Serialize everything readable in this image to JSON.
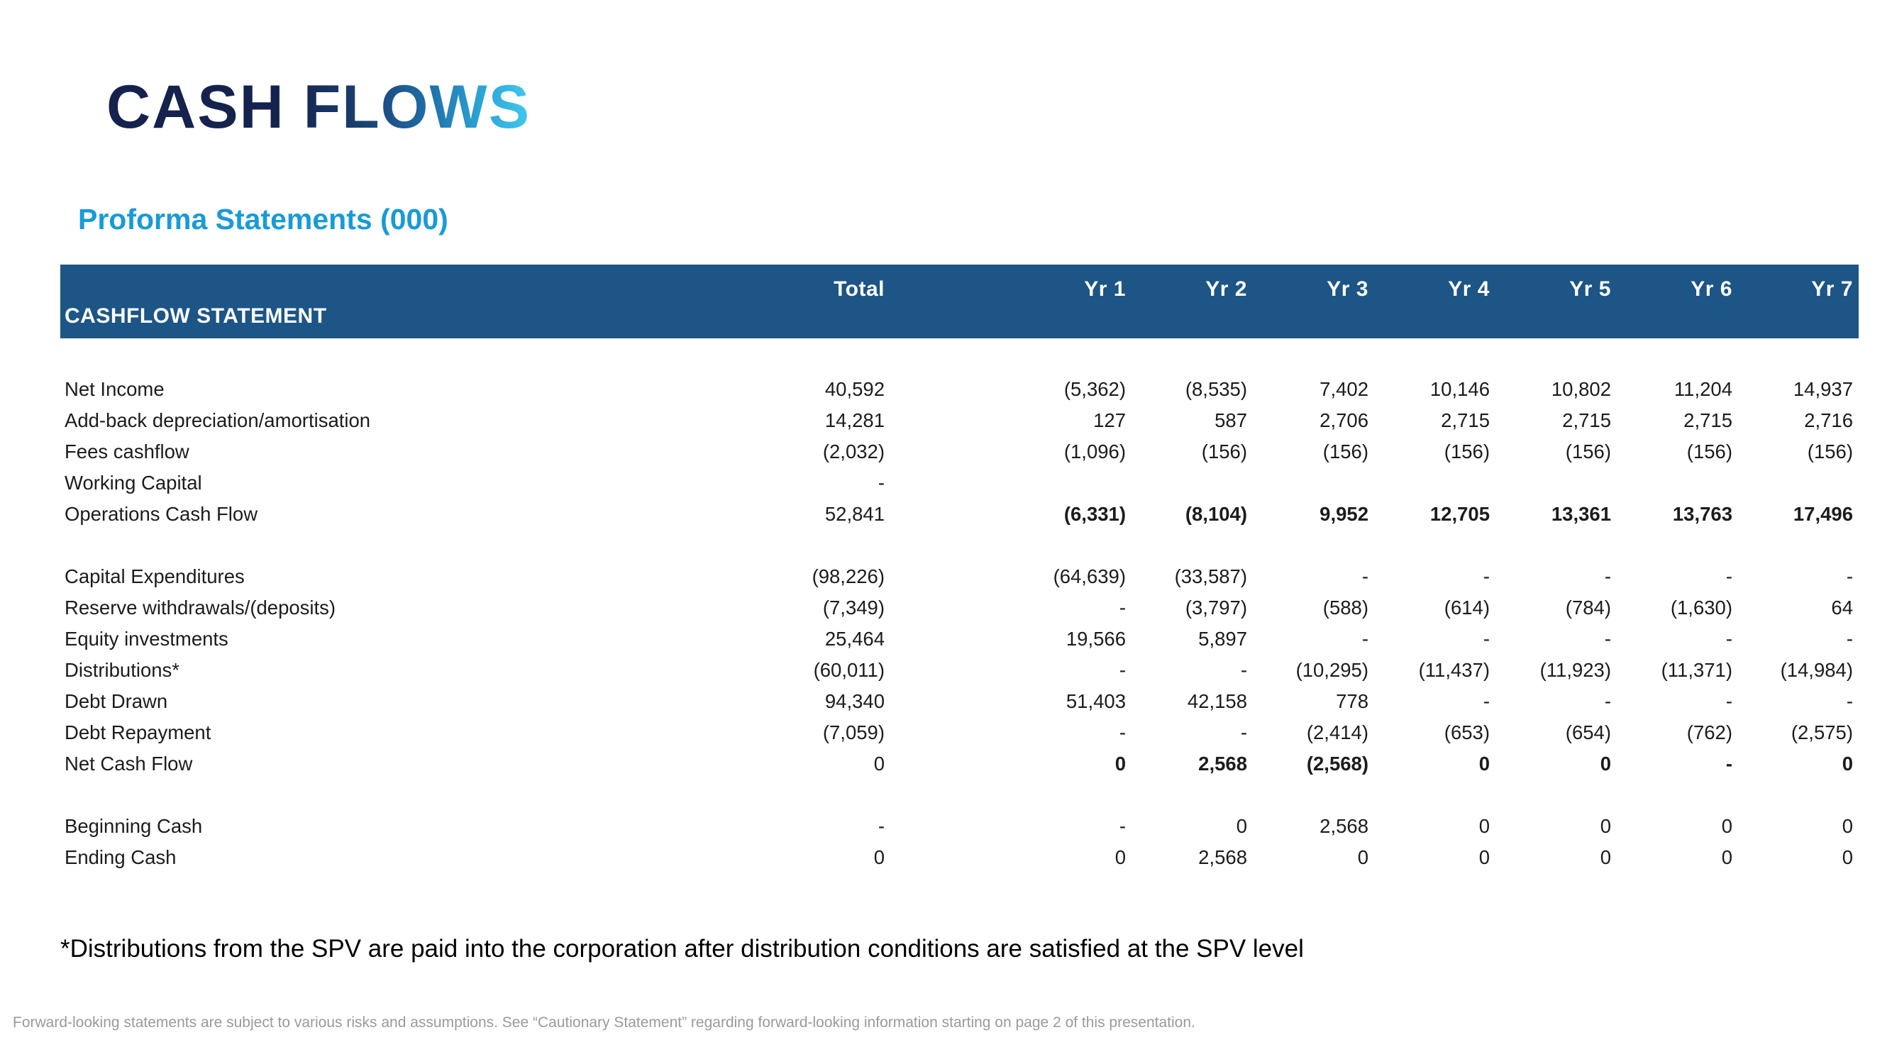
{
  "slide": {
    "title": "CASH FLOWS",
    "subtitle": "Proforma Statements (000)",
    "footnote": "*Distributions from the SPV are paid into the corporation after distribution conditions are satisfied at the SPV level",
    "disclaimer": "Forward-looking statements are subject to various risks and assumptions. See “Cautionary Statement” regarding forward-looking information starting on page 2 of this presentation."
  },
  "colors": {
    "header_band": "#1C5586",
    "header_text": "#FFFFFF",
    "title_gradient_start": "#14224D",
    "title_gradient_end": "#41C8F0",
    "subtitle_text": "#189BD7",
    "body_text": "#1C1C1C",
    "disclaimer_text": "#9A9A9A"
  },
  "table": {
    "section_title": "CASHFLOW STATEMENT",
    "columns": [
      "Total",
      "Yr 1",
      "Yr 2",
      "Yr 3",
      "Yr 4",
      "Yr 5",
      "Yr 6",
      "Yr 7"
    ],
    "rows": [
      {
        "label": "Net Income",
        "values": [
          "40,592",
          "(5,362)",
          "(8,535)",
          "7,402",
          "10,146",
          "10,802",
          "11,204",
          "14,937"
        ],
        "bold_years": false,
        "spacer_after": false
      },
      {
        "label": "Add-back depreciation/amortisation",
        "values": [
          "14,281",
          "127",
          "587",
          "2,706",
          "2,715",
          "2,715",
          "2,715",
          "2,716"
        ],
        "bold_years": false,
        "spacer_after": false
      },
      {
        "label": "Fees cashflow",
        "values": [
          "(2,032)",
          "(1,096)",
          "(156)",
          "(156)",
          "(156)",
          "(156)",
          "(156)",
          "(156)"
        ],
        "bold_years": false,
        "spacer_after": false
      },
      {
        "label": "Working Capital",
        "values": [
          "-",
          "",
          "",
          "",
          "",
          "",
          "",
          ""
        ],
        "bold_years": false,
        "spacer_after": false
      },
      {
        "label": "Operations Cash Flow",
        "values": [
          "52,841",
          "(6,331)",
          "(8,104)",
          "9,952",
          "12,705",
          "13,361",
          "13,763",
          "17,496"
        ],
        "bold_years": true,
        "spacer_after": true
      },
      {
        "label": "Capital Expenditures",
        "values": [
          "(98,226)",
          "(64,639)",
          "(33,587)",
          "-",
          "-",
          "-",
          "-",
          "-"
        ],
        "bold_years": false,
        "spacer_after": false
      },
      {
        "label": "Reserve withdrawals/(deposits)",
        "values": [
          "(7,349)",
          "-",
          "(3,797)",
          "(588)",
          "(614)",
          "(784)",
          "(1,630)",
          "64"
        ],
        "bold_years": false,
        "spacer_after": false
      },
      {
        "label": "Equity investments",
        "values": [
          "25,464",
          "19,566",
          "5,897",
          "-",
          "-",
          "-",
          "-",
          "-"
        ],
        "bold_years": false,
        "spacer_after": false
      },
      {
        "label": "Distributions*",
        "values": [
          "(60,011)",
          "-",
          "-",
          "(10,295)",
          "(11,437)",
          "(11,923)",
          "(11,371)",
          "(14,984)"
        ],
        "bold_years": false,
        "spacer_after": false
      },
      {
        "label": "Debt Drawn",
        "values": [
          "94,340",
          "51,403",
          "42,158",
          "778",
          "-",
          "-",
          "-",
          "-"
        ],
        "bold_years": false,
        "spacer_after": false
      },
      {
        "label": "Debt Repayment",
        "values": [
          "(7,059)",
          "-",
          "-",
          "(2,414)",
          "(653)",
          "(654)",
          "(762)",
          "(2,575)"
        ],
        "bold_years": false,
        "spacer_after": false
      },
      {
        "label": "Net Cash Flow",
        "values": [
          "0",
          "0",
          "2,568",
          "(2,568)",
          "0",
          "0",
          "-",
          "0"
        ],
        "bold_years": true,
        "spacer_after": true
      },
      {
        "label": "Beginning Cash",
        "values": [
          "-",
          "-",
          "0",
          "2,568",
          "0",
          "0",
          "0",
          "0"
        ],
        "bold_years": false,
        "spacer_after": false
      },
      {
        "label": "Ending Cash",
        "values": [
          "0",
          "0",
          "2,568",
          "0",
          "0",
          "0",
          "0",
          "0"
        ],
        "bold_years": false,
        "spacer_after": false
      }
    ]
  }
}
